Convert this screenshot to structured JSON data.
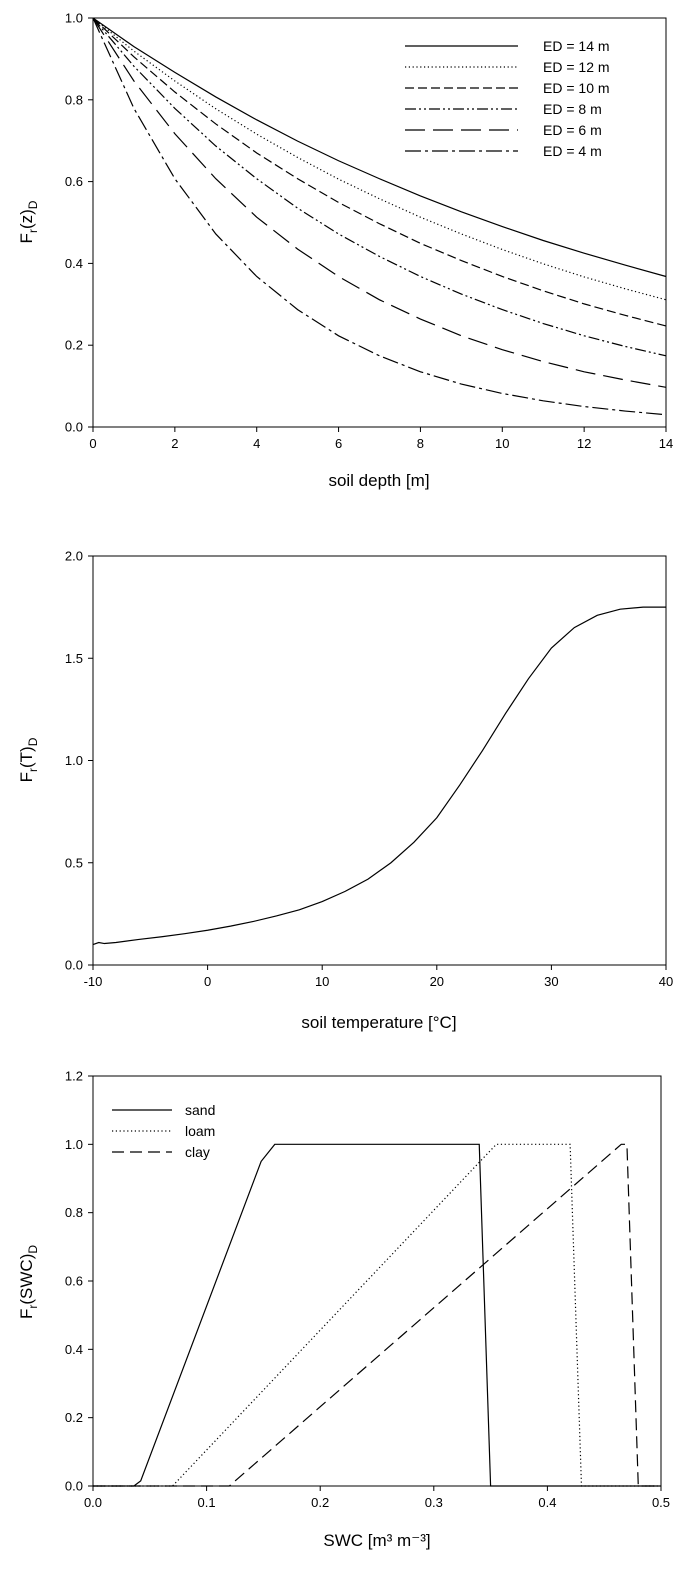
{
  "figure": {
    "background": "#ffffff",
    "ink": "#000000"
  },
  "chart_data": [
    {
      "type": "line",
      "title": "",
      "xlabel": "soil depth [m]",
      "ylabel_parts": [
        "F",
        "r",
        "(z)",
        "D"
      ],
      "xlim": [
        0,
        14
      ],
      "ylim": [
        0,
        1.0
      ],
      "xticks": [
        0,
        2,
        4,
        6,
        8,
        10,
        12,
        14
      ],
      "yticks": [
        0.0,
        0.2,
        0.4,
        0.6,
        0.8,
        1.0
      ],
      "xtick_labels": [
        "0",
        "2",
        "4",
        "6",
        "8",
        "10",
        "12",
        "14"
      ],
      "ytick_labels": [
        "0.0",
        "0.2",
        "0.4",
        "0.6",
        "0.8",
        "1.0"
      ],
      "grid": false,
      "legend_position": "top-right",
      "x": [
        0,
        1,
        2,
        3,
        4,
        5,
        6,
        7,
        8,
        9,
        10,
        11,
        12,
        13,
        14
      ],
      "series": [
        {
          "name": "ED = 14 m",
          "dash": "solid",
          "values": [
            1.0,
            0.93,
            0.867,
            0.807,
            0.751,
            0.699,
            0.651,
            0.607,
            0.565,
            0.526,
            0.49,
            0.456,
            0.425,
            0.396,
            0.368
          ]
        },
        {
          "name": "ED = 12 m",
          "dash": "dotted",
          "values": [
            1.0,
            0.919,
            0.846,
            0.778,
            0.716,
            0.659,
            0.606,
            0.558,
            0.513,
            0.472,
            0.434,
            0.399,
            0.367,
            0.338,
            0.311
          ]
        },
        {
          "name": "ED = 10 m",
          "dash": "short-dash",
          "values": [
            1.0,
            0.905,
            0.819,
            0.741,
            0.67,
            0.607,
            0.549,
            0.497,
            0.449,
            0.407,
            0.368,
            0.333,
            0.301,
            0.273,
            0.247
          ]
        },
        {
          "name": "ED = 8 m",
          "dash": "dash-dot-dot",
          "values": [
            1.0,
            0.882,
            0.779,
            0.687,
            0.607,
            0.535,
            0.472,
            0.417,
            0.368,
            0.325,
            0.287,
            0.253,
            0.223,
            0.197,
            0.174
          ]
        },
        {
          "name": "ED = 6 m",
          "dash": "long-dash",
          "values": [
            1.0,
            0.846,
            0.717,
            0.607,
            0.513,
            0.435,
            0.368,
            0.311,
            0.264,
            0.223,
            0.189,
            0.16,
            0.135,
            0.115,
            0.097
          ]
        },
        {
          "name": "ED = 4 m",
          "dash": "dash-dot",
          "values": [
            1.0,
            0.779,
            0.607,
            0.472,
            0.368,
            0.287,
            0.223,
            0.174,
            0.135,
            0.105,
            0.082,
            0.064,
            0.05,
            0.039,
            0.03
          ]
        }
      ]
    },
    {
      "type": "line",
      "title": "",
      "xlabel": "soil temperature [°C]",
      "ylabel_parts": [
        "F",
        "r",
        "(T)",
        "D"
      ],
      "xlim": [
        -10,
        40
      ],
      "ylim": [
        0,
        2.0
      ],
      "xticks": [
        -10,
        0,
        10,
        20,
        30,
        40
      ],
      "yticks": [
        0.0,
        0.5,
        1.0,
        1.5,
        2.0
      ],
      "xtick_labels": [
        "-10",
        "0",
        "10",
        "20",
        "30",
        "40"
      ],
      "ytick_labels": [
        "0.0",
        "0.5",
        "1.0",
        "1.5",
        "2.0"
      ],
      "grid": false,
      "x": [
        -10,
        -9.5,
        -9,
        -8,
        -6,
        -4,
        -2,
        0,
        2,
        4,
        6,
        8,
        10,
        12,
        14,
        16,
        18,
        20,
        22,
        24,
        26,
        28,
        30,
        32,
        34,
        36,
        38,
        40
      ],
      "series": [
        {
          "name": "",
          "dash": "solid",
          "values": [
            0.1,
            0.11,
            0.105,
            0.11,
            0.125,
            0.138,
            0.153,
            0.17,
            0.19,
            0.213,
            0.24,
            0.27,
            0.31,
            0.36,
            0.42,
            0.5,
            0.6,
            0.72,
            0.88,
            1.05,
            1.23,
            1.4,
            1.55,
            1.65,
            1.71,
            1.74,
            1.75,
            1.75
          ]
        }
      ]
    },
    {
      "type": "line",
      "title": "",
      "xlabel": "SWC [m³ m⁻³]",
      "ylabel_parts": [
        "F",
        "r",
        "(SWC)",
        "D"
      ],
      "xlim": [
        0,
        0.5
      ],
      "ylim": [
        0,
        1.2
      ],
      "xticks": [
        0.0,
        0.1,
        0.2,
        0.3,
        0.4,
        0.5
      ],
      "yticks": [
        0.0,
        0.2,
        0.4,
        0.6,
        0.8,
        1.0,
        1.2
      ],
      "xtick_labels": [
        "0.0",
        "0.1",
        "0.2",
        "0.3",
        "0.4",
        "0.5"
      ],
      "ytick_labels": [
        "0.0",
        "0.2",
        "0.4",
        "0.6",
        "0.8",
        "1.0",
        "1.2"
      ],
      "grid": false,
      "legend_position": "top-left",
      "series": [
        {
          "name": "sand",
          "dash": "solid",
          "x": [
            0,
            0.036,
            0.042,
            0.148,
            0.16,
            0.34,
            0.35,
            0.5
          ],
          "values": [
            0,
            0,
            0.015,
            0.95,
            1.0,
            1.0,
            0,
            0
          ]
        },
        {
          "name": "loam",
          "dash": "dotted",
          "x": [
            0,
            0.07,
            0.355,
            0.42,
            0.43,
            0.5
          ],
          "values": [
            0,
            0,
            1.0,
            1.0,
            0,
            0
          ]
        },
        {
          "name": "clay",
          "dash": "dash",
          "x": [
            0,
            0.12,
            0.465,
            0.47,
            0.48,
            0.5
          ],
          "values": [
            0,
            0,
            1.0,
            1.0,
            0,
            0
          ]
        }
      ]
    }
  ]
}
